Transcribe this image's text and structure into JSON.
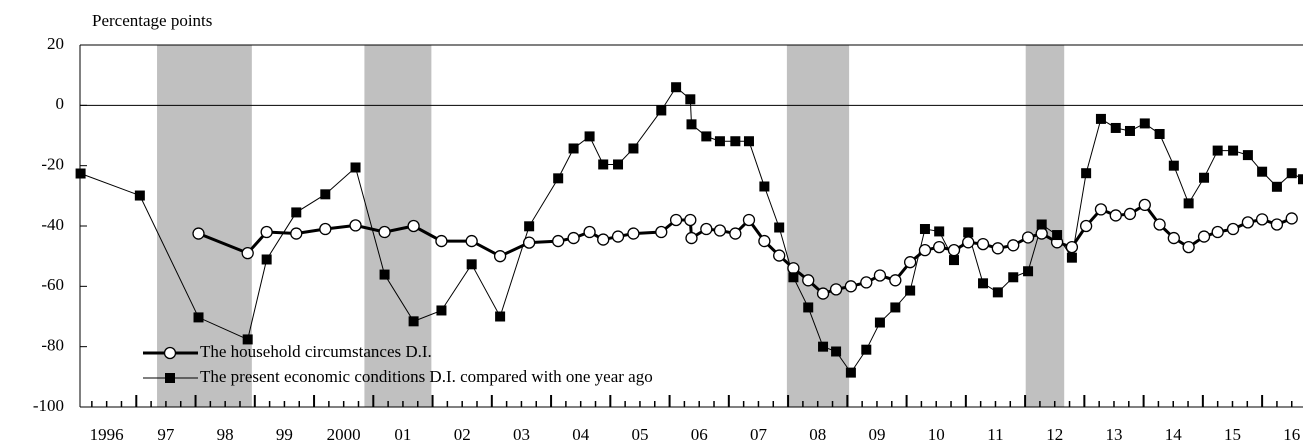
{
  "chart_data": {
    "type": "line",
    "y_label": "Percentage points",
    "xlim": [
      1996.05,
      2016.69
    ],
    "ylim": [
      -100,
      20
    ],
    "yticks": [
      -100,
      -80,
      -60,
      -40,
      -20,
      0,
      20
    ],
    "xticks": [
      {
        "value": 1996.5,
        "label": "1996"
      },
      {
        "value": 1997.5,
        "label": "97"
      },
      {
        "value": 1998.5,
        "label": "98"
      },
      {
        "value": 1999.5,
        "label": "99"
      },
      {
        "value": 2000.5,
        "label": "2000"
      },
      {
        "value": 2001.5,
        "label": "01"
      },
      {
        "value": 2002.5,
        "label": "02"
      },
      {
        "value": 2003.5,
        "label": "03"
      },
      {
        "value": 2004.5,
        "label": "04"
      },
      {
        "value": 2005.5,
        "label": "05"
      },
      {
        "value": 2006.5,
        "label": "06"
      },
      {
        "value": 2007.5,
        "label": "07"
      },
      {
        "value": 2008.5,
        "label": "08"
      },
      {
        "value": 2009.5,
        "label": "09"
      },
      {
        "value": 2010.5,
        "label": "10"
      },
      {
        "value": 2011.5,
        "label": "11"
      },
      {
        "value": 2012.5,
        "label": "12"
      },
      {
        "value": 2013.5,
        "label": "13"
      },
      {
        "value": 2014.5,
        "label": "14"
      },
      {
        "value": 2015.5,
        "label": "15"
      },
      {
        "value": 2016.5,
        "label": "16"
      }
    ],
    "shaded_periods": [
      [
        1997.35,
        1998.95
      ],
      [
        2000.85,
        2001.98
      ],
      [
        2007.98,
        2009.03
      ],
      [
        2012.01,
        2012.66
      ]
    ],
    "shade_color": "#c0c0c0",
    "zero_line": true,
    "legend": "lower left",
    "series": [
      {
        "name": "The household circumstances D.I.",
        "color": "#000000",
        "marker": "circle",
        "line_width": 3,
        "x": [
          1998.05,
          1998.88,
          1999.2,
          1999.7,
          2000.19,
          2000.7,
          2001.19,
          2001.68,
          2002.15,
          2002.66,
          2003.14,
          2003.63,
          2004.12,
          2004.38,
          2004.65,
          2004.88,
          2005.13,
          2005.39,
          2005.86,
          2006.11,
          2006.35,
          2006.37,
          2006.62,
          2006.85,
          2007.11,
          2007.34,
          2007.6,
          2007.85,
          2008.09,
          2008.34,
          2008.59,
          2008.81,
          2009.06,
          2009.32,
          2009.55,
          2009.81,
          2010.06,
          2010.31,
          2010.55,
          2010.8,
          2011.04,
          2011.29,
          2011.54,
          2011.8,
          2012.05,
          2012.28,
          2012.54,
          2012.79,
          2013.03,
          2013.28,
          2013.53,
          2013.77,
          2014.02,
          2014.27,
          2014.51,
          2014.76,
          2015.02,
          2015.25,
          2015.51,
          2015.76,
          2016.0,
          2016.25,
          2016.5
        ],
        "values": [
          -42.5,
          -49,
          -42,
          -42.5,
          -41,
          -39.8,
          -42,
          -40,
          -45,
          -45,
          -50,
          -45.5,
          -45,
          -44,
          -42,
          -44.5,
          -43.5,
          -42.5,
          -42,
          -38,
          -38,
          -44,
          -41,
          -41.5,
          -42.5,
          -38,
          -45,
          -49.8,
          -54,
          -58,
          -62.4,
          -61,
          -60,
          -58.7,
          -56.4,
          -58,
          -52,
          -48,
          -47,
          -48,
          -45.4,
          -46,
          -47.4,
          -46.4,
          -43.8,
          -42.5,
          -45.4,
          -47,
          -40,
          -34.5,
          -36.5,
          -36,
          -33,
          -39.5,
          -44,
          -47,
          -43.5,
          -42,
          -41,
          -38.8,
          -37.8,
          -39.5,
          -37.5
        ]
      },
      {
        "name": "The present economic conditions D.I. compared with one year ago",
        "color": "#000000",
        "marker": "square",
        "line_width": 1,
        "x": [
          1996.06,
          1997.06,
          1998.05,
          1998.88,
          1999.2,
          1999.7,
          2000.19,
          2000.7,
          2001.19,
          2001.68,
          2002.15,
          2002.66,
          2003.14,
          2003.63,
          2004.12,
          2004.38,
          2004.65,
          2004.88,
          2005.13,
          2005.39,
          2005.86,
          2006.11,
          2006.35,
          2006.37,
          2006.62,
          2006.85,
          2007.11,
          2007.34,
          2007.6,
          2007.85,
          2008.09,
          2008.34,
          2008.59,
          2008.81,
          2009.06,
          2009.32,
          2009.55,
          2009.81,
          2010.06,
          2010.31,
          2010.55,
          2010.8,
          2011.04,
          2011.29,
          2011.54,
          2011.8,
          2012.05,
          2012.28,
          2012.54,
          2012.79,
          2013.03,
          2013.28,
          2013.53,
          2013.77,
          2014.02,
          2014.27,
          2014.51,
          2014.76,
          2015.02,
          2015.25,
          2015.51,
          2015.76,
          2016.0,
          2016.25,
          2016.5,
          2016.69
        ],
        "values": [
          -22.6,
          -29.9,
          -70.3,
          -77.6,
          -51.1,
          -35.5,
          -29.5,
          -20.6,
          -56.1,
          -71.6,
          -68,
          -52.7,
          -70,
          -40.1,
          -24.2,
          -14.3,
          -10.3,
          -19.6,
          -19.6,
          -14.3,
          -1.7,
          6,
          2,
          -6.3,
          -10.3,
          -11.9,
          -11.9,
          -11.9,
          -26.9,
          -40.5,
          -57,
          -67,
          -80,
          -81.6,
          -88.6,
          -81,
          -72,
          -67,
          -61.4,
          -41,
          -41.8,
          -51.3,
          -42.1,
          -59,
          -62,
          -57,
          -55,
          -39.5,
          -43,
          -50.5,
          -22.5,
          -4.5,
          -7.5,
          -8.5,
          -6,
          -9.5,
          -20,
          -32.5,
          -24,
          -15,
          -15,
          -16.5,
          -22,
          -27,
          -22.5,
          -24.5
        ]
      }
    ]
  }
}
